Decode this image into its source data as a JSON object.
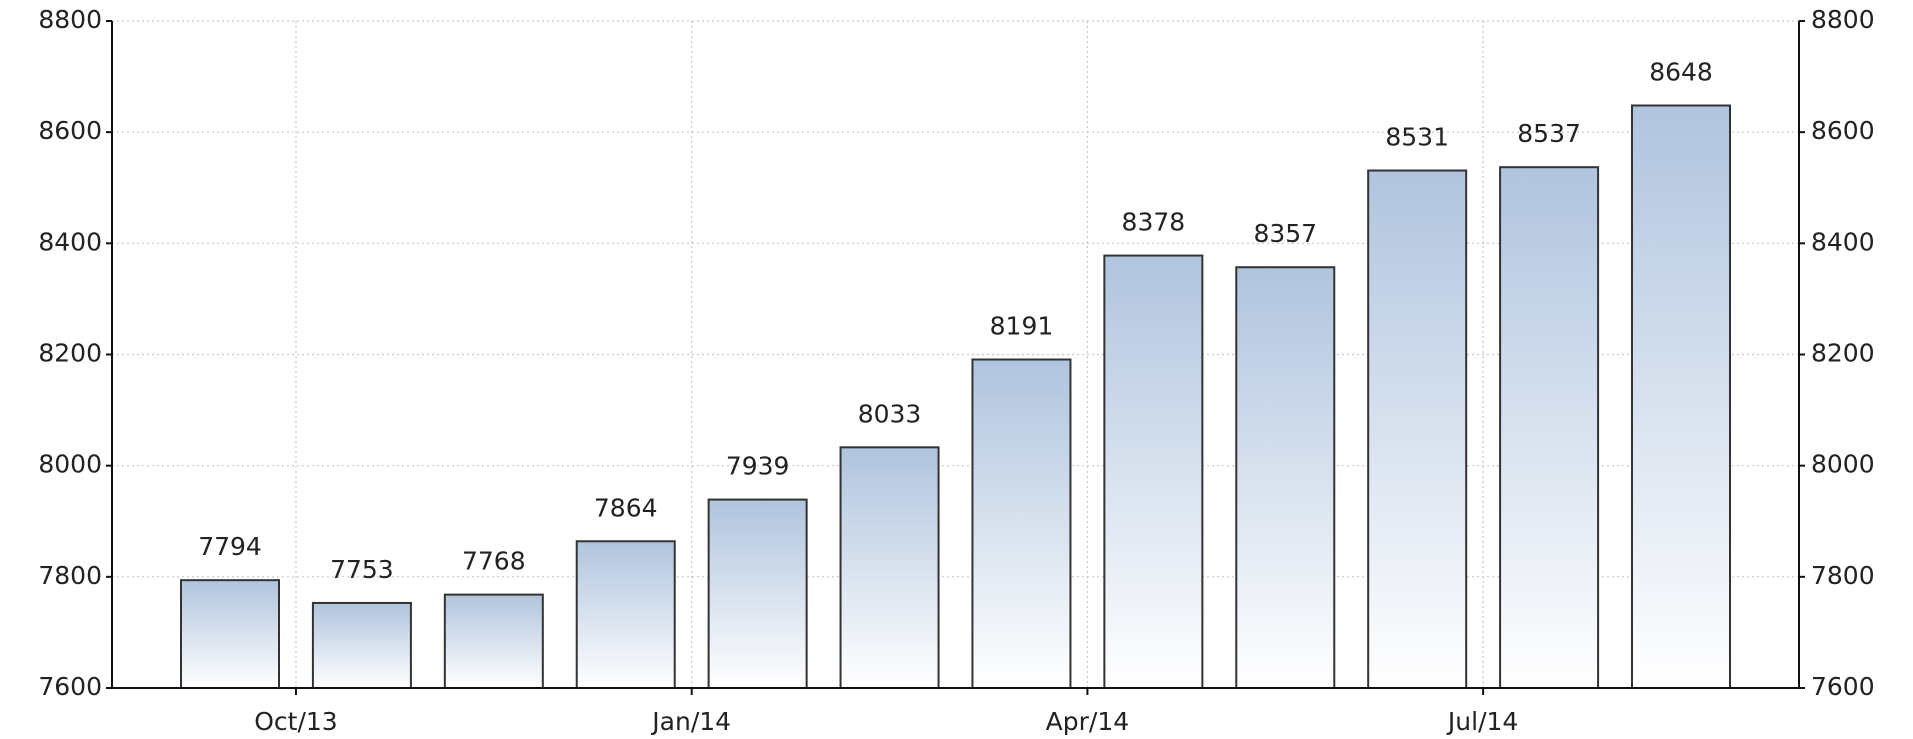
{
  "chart_data": {
    "type": "bar",
    "categories": [
      null,
      "Oct/13",
      null,
      null,
      "Jan/14",
      null,
      null,
      "Apr/14",
      null,
      null,
      "Jul/14",
      null
    ],
    "values": [
      7794,
      7753,
      7768,
      7864,
      7939,
      8033,
      8191,
      8378,
      8357,
      8531,
      8537,
      8648
    ],
    "color": "#b0c4de",
    "ylim": [
      7600,
      8800
    ],
    "yticks": [
      7600,
      7800,
      8000,
      8200,
      8400,
      8600,
      8800
    ],
    "y2lim": [
      7600,
      8800
    ],
    "y2ticks": [
      7600,
      7800,
      8000,
      8200,
      8400,
      8600,
      8800
    ],
    "grid": true
  }
}
